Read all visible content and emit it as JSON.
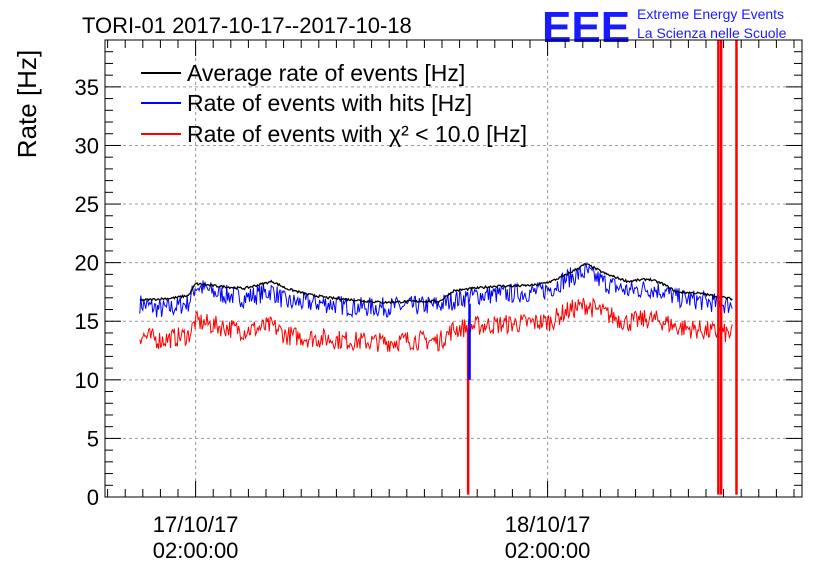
{
  "chart_data": {
    "type": "line",
    "title": "TORI-01 2017-10-17--2017-10-18",
    "ylabel": "Rate [Hz]",
    "xlabel": "",
    "ylim": [
      0,
      39
    ],
    "xlim": [
      0,
      1
    ],
    "y_ticks": [
      0,
      5,
      10,
      15,
      20,
      25,
      30,
      35
    ],
    "y_tick_labels": [
      "0",
      "5",
      "10",
      "15",
      "20",
      "25",
      "30",
      "35"
    ],
    "x_ticks": [
      {
        "pos": 0.13,
        "date": "17/10/17",
        "time": "02:00:00"
      },
      {
        "pos": 0.635,
        "date": "18/10/17",
        "time": "02:00:00"
      }
    ],
    "grid": true,
    "legend_position": "top-left",
    "colors": {
      "avg": "#000000",
      "hits": "#0000ff",
      "chi2": "#ff0000",
      "grid": "#9a9a9a"
    },
    "series": [
      {
        "key": "avg",
        "name": "Average rate of events [Hz]",
        "color": "#000000",
        "x": [
          0.05,
          0.08,
          0.1,
          0.12,
          0.13,
          0.16,
          0.2,
          0.24,
          0.26,
          0.29,
          0.32,
          0.36,
          0.4,
          0.44,
          0.48,
          0.5,
          0.53,
          0.56,
          0.59,
          0.62,
          0.64,
          0.66,
          0.69,
          0.72,
          0.75,
          0.78,
          0.8,
          0.82,
          0.85,
          0.88,
          0.9
        ],
        "y": [
          16.8,
          16.9,
          17.0,
          17.2,
          18.2,
          18.0,
          17.8,
          18.4,
          17.8,
          17.3,
          17.0,
          16.8,
          16.6,
          16.7,
          16.7,
          17.6,
          17.8,
          18.0,
          18.0,
          18.1,
          18.4,
          18.9,
          19.9,
          19.0,
          18.4,
          18.6,
          18.2,
          17.5,
          17.4,
          17.1,
          16.9
        ]
      },
      {
        "key": "hits",
        "name": "Rate of events with hits [Hz]",
        "color": "#0000ff",
        "x": [
          0.05,
          0.08,
          0.1,
          0.12,
          0.13,
          0.16,
          0.2,
          0.24,
          0.26,
          0.29,
          0.32,
          0.36,
          0.4,
          0.44,
          0.48,
          0.5,
          0.53,
          0.56,
          0.59,
          0.62,
          0.64,
          0.66,
          0.69,
          0.72,
          0.75,
          0.78,
          0.8,
          0.82,
          0.85,
          0.88,
          0.9
        ],
        "y": [
          16.5,
          16.0,
          16.2,
          16.6,
          18.0,
          17.4,
          17.0,
          17.6,
          16.6,
          16.6,
          16.5,
          16.2,
          16.2,
          16.3,
          16.4,
          16.8,
          17.2,
          17.3,
          17.4,
          17.5,
          17.8,
          18.6,
          19.2,
          18.2,
          17.6,
          17.8,
          17.6,
          17.0,
          16.8,
          16.5,
          16.4
        ]
      },
      {
        "key": "chi2",
        "name": "Rate of events with χ² < 10.0 [Hz]",
        "color": "#ff0000",
        "x": [
          0.05,
          0.08,
          0.1,
          0.12,
          0.13,
          0.16,
          0.2,
          0.24,
          0.26,
          0.29,
          0.32,
          0.36,
          0.4,
          0.44,
          0.48,
          0.5,
          0.53,
          0.56,
          0.59,
          0.62,
          0.64,
          0.66,
          0.69,
          0.72,
          0.75,
          0.78,
          0.8,
          0.82,
          0.85,
          0.88,
          0.9
        ],
        "y": [
          13.8,
          13.4,
          13.6,
          13.8,
          15.0,
          14.6,
          14.2,
          14.6,
          13.8,
          13.6,
          13.5,
          13.3,
          13.2,
          13.4,
          13.3,
          14.3,
          14.6,
          14.7,
          14.8,
          14.9,
          15.0,
          15.8,
          16.4,
          15.6,
          14.9,
          15.2,
          15.0,
          14.5,
          14.3,
          14.0,
          13.9
        ]
      }
    ],
    "spikes": [
      {
        "x": 0.521,
        "ymin": 0.2,
        "ymax": 14.0,
        "color": "#ff0000"
      },
      {
        "x": 0.523,
        "ymin": 10.0,
        "ymax": 16.5,
        "color": "#0000ff"
      },
      {
        "x": 0.88,
        "ymin": 0.2,
        "ymax": 39.0,
        "color": "#ff0000"
      },
      {
        "x": 0.884,
        "ymin": 0.2,
        "ymax": 39.0,
        "color": "#ff0000"
      },
      {
        "x": 0.906,
        "ymin": 0.2,
        "ymax": 39.0,
        "color": "#ff0000"
      }
    ]
  },
  "logo": {
    "mark": "EEE",
    "line1": "Extreme Energy Events",
    "line2": "La Scienza nelle Scuole"
  }
}
